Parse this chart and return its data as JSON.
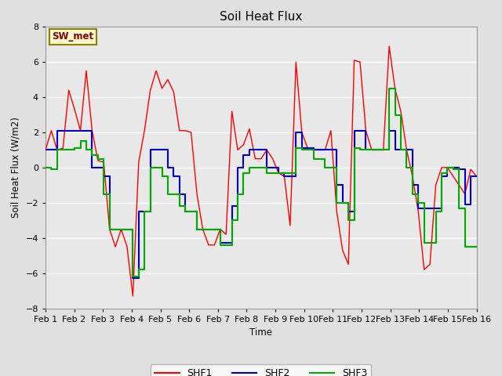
{
  "title": "Soil Heat Flux",
  "ylabel": "Soil Heat Flux (W/m2)",
  "xlabel": "Time",
  "ylim": [
    -8,
    8
  ],
  "yticks": [
    -8,
    -6,
    -4,
    -2,
    0,
    2,
    4,
    6,
    8
  ],
  "x_labels": [
    "Feb 1",
    "Feb 2",
    "Feb 3",
    "Feb 4",
    "Feb 5",
    "Feb 6",
    "Feb 7",
    "Feb 8",
    "Feb 9",
    "Feb 10",
    "Feb 11",
    "Feb 12",
    "Feb 13",
    "Feb 14",
    "Feb 15",
    "Feb 16"
  ],
  "annotation_text": "SW_met",
  "annotation_color": "#8B0000",
  "annotation_bg": "#FFFACD",
  "annotation_border": "#8B8000",
  "colors": {
    "SHF1": "#FF0000",
    "SHF2": "#0000CC",
    "SHF3": "#00AA00"
  },
  "background_color": "#E0E0E0",
  "plot_bg": "#E8E8E8",
  "SHF1": [
    1.0,
    2.1,
    1.0,
    1.1,
    4.4,
    3.3,
    2.1,
    5.5,
    2.1,
    0.4,
    0.3,
    -3.5,
    -4.5,
    -3.5,
    -4.5,
    -7.3,
    0.3,
    2.1,
    4.4,
    5.5,
    4.5,
    5.0,
    4.3,
    2.1,
    2.1,
    2.0,
    -1.5,
    -3.5,
    -4.4,
    -4.4,
    -3.5,
    -3.8,
    3.2,
    1.0,
    1.3,
    2.2,
    0.5,
    0.5,
    1.0,
    0.5,
    -0.3,
    -0.5,
    -3.3,
    6.0,
    2.0,
    1.1,
    1.0,
    1.0,
    1.0,
    2.1,
    -2.5,
    -4.7,
    -5.5,
    6.1,
    6.0,
    2.1,
    1.0,
    1.0,
    1.0,
    6.9,
    4.5,
    3.2,
    1.0,
    -0.5,
    -2.5,
    -5.8,
    -5.5,
    -1.0,
    0.0,
    0.0,
    -0.5,
    -1.0,
    -1.5,
    -0.1,
    -0.5
  ],
  "SHF2": [
    1.0,
    1.0,
    2.1,
    2.1,
    2.1,
    2.1,
    2.1,
    2.1,
    0.0,
    0.0,
    -0.5,
    -3.5,
    -3.5,
    -3.5,
    -3.5,
    -6.3,
    -2.5,
    -2.5,
    1.0,
    1.0,
    1.0,
    0.0,
    -0.5,
    -1.5,
    -2.5,
    -2.5,
    -3.5,
    -3.5,
    -3.5,
    -3.5,
    -4.3,
    -4.3,
    -2.2,
    0.0,
    0.7,
    1.0,
    1.0,
    1.0,
    0.0,
    0.0,
    -0.3,
    -0.5,
    -0.5,
    2.0,
    1.1,
    1.1,
    1.0,
    1.0,
    1.0,
    1.0,
    -1.0,
    -2.0,
    -2.5,
    2.1,
    2.1,
    1.0,
    1.0,
    1.0,
    1.0,
    2.1,
    1.0,
    1.0,
    1.0,
    -1.0,
    -2.3,
    -2.3,
    -2.3,
    -2.3,
    -0.5,
    0.0,
    0.0,
    -0.1,
    -2.1,
    -0.5,
    -0.5
  ],
  "SHF3": [
    0.0,
    -0.1,
    1.0,
    1.0,
    1.0,
    1.1,
    1.5,
    1.0,
    0.7,
    0.5,
    -1.5,
    -3.5,
    -3.5,
    -3.5,
    -3.5,
    -6.2,
    -5.8,
    -2.5,
    0.0,
    0.0,
    -0.5,
    -1.5,
    -1.5,
    -2.2,
    -2.5,
    -2.5,
    -3.5,
    -3.5,
    -3.5,
    -3.5,
    -4.4,
    -4.4,
    -3.0,
    -1.5,
    -0.3,
    0.0,
    0.0,
    0.0,
    -0.3,
    -0.3,
    -0.3,
    -0.3,
    -0.3,
    1.1,
    1.0,
    1.0,
    0.5,
    0.5,
    0.0,
    0.0,
    -2.0,
    -2.0,
    -3.0,
    1.1,
    1.0,
    1.0,
    1.0,
    1.0,
    1.0,
    4.5,
    3.0,
    1.0,
    0.0,
    -1.5,
    -2.0,
    -4.3,
    -4.3,
    -2.5,
    -0.3,
    0.0,
    -0.1,
    -2.3,
    -4.5,
    -4.5,
    -4.5
  ]
}
